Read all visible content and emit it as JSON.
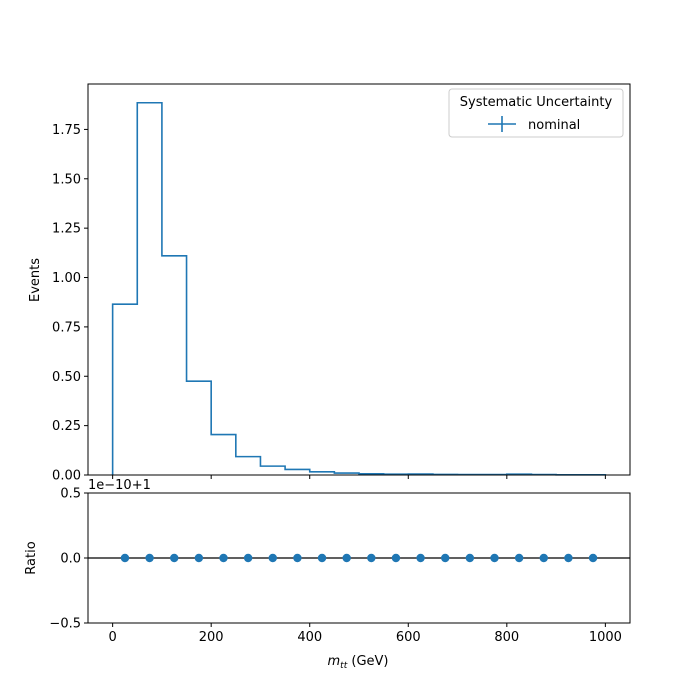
{
  "chart_data": [
    {
      "type": "step-histogram",
      "panel": "main",
      "ylabel": "Events",
      "xlim": [
        -50,
        1050
      ],
      "ylim": [
        0,
        1.98
      ],
      "yticks": [
        0.0,
        0.25,
        0.5,
        0.75,
        1.0,
        1.25,
        1.5,
        1.75
      ],
      "ytick_labels": [
        "0.00",
        "0.25",
        "0.50",
        "0.75",
        "1.00",
        "1.25",
        "1.50",
        "1.75"
      ],
      "bin_edges": [
        0,
        50,
        100,
        150,
        200,
        250,
        300,
        350,
        400,
        450,
        500,
        550,
        600,
        650,
        700,
        750,
        800,
        850,
        900,
        950,
        1000
      ],
      "series": [
        {
          "name": "nominal",
          "color": "#1f77b4",
          "values": [
            0.865,
            1.885,
            1.11,
            0.475,
            0.205,
            0.093,
            0.045,
            0.028,
            0.016,
            0.01,
            0.006,
            0.004,
            0.005,
            0.003,
            0.002,
            0.002,
            0.004,
            0.002,
            0.001,
            0.001
          ]
        }
      ],
      "legend": {
        "title": "Systematic Uncertainty",
        "placement": "top-right"
      }
    },
    {
      "type": "scatter",
      "panel": "ratio",
      "xlabel_prefix": "m",
      "xlabel_sub": "tt",
      "xlabel_suffix": " (GeV)",
      "ylabel": "Ratio",
      "offset_text": "1e−10+1",
      "xlim": [
        -50,
        1050
      ],
      "ylim": [
        -0.5,
        0.5
      ],
      "yticks": [
        -0.5,
        0.0,
        0.5
      ],
      "ytick_labels": [
        "−0.5",
        "0.0",
        "0.5"
      ],
      "xticks": [
        0,
        200,
        400,
        600,
        800,
        1000
      ],
      "xtick_labels": [
        "0",
        "200",
        "400",
        "600",
        "800",
        "1000"
      ],
      "reference_line": 0.0,
      "series": [
        {
          "name": "nominal",
          "color": "#1f77b4",
          "x": [
            25,
            75,
            125,
            175,
            225,
            275,
            325,
            375,
            425,
            475,
            525,
            575,
            625,
            675,
            725,
            775,
            825,
            875,
            925,
            975
          ],
          "y": [
            0,
            0,
            0,
            0,
            0,
            0,
            0,
            0,
            0,
            0,
            0,
            0,
            0,
            0,
            0,
            0,
            0,
            0,
            0,
            0
          ]
        }
      ]
    }
  ]
}
